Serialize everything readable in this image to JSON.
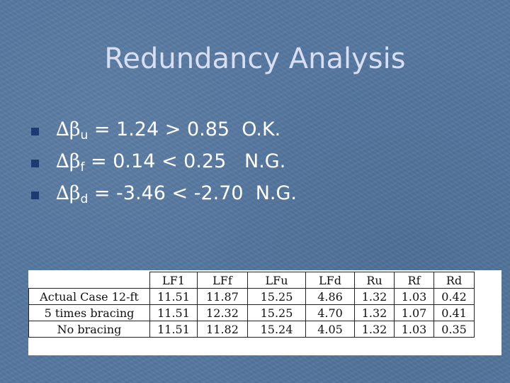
{
  "title": "Redundancy Analysis",
  "bullets": [
    {
      "symbol": "∆β",
      "sub": "u",
      "rest": " = 1.24 > 0.85  O.K."
    },
    {
      "symbol": "∆β",
      "sub": "f",
      "rest": " = 0.14 < 0.25   N.G."
    },
    {
      "symbol": "∆β",
      "sub": "d",
      "rest": " = -3.46 < -2.70  N.G."
    }
  ],
  "table": {
    "headers": [
      "LF1",
      "LFf",
      "LFu",
      "LFd",
      "Ru",
      "Rf",
      "Rd"
    ],
    "rows": [
      {
        "label": "Actual Case 12-ft",
        "cells": [
          "11.51",
          "11.87",
          "15.25",
          "4.86",
          "1.32",
          "1.03",
          "0.42"
        ]
      },
      {
        "label": "5 times bracing",
        "cells": [
          "11.51",
          "12.32",
          "15.25",
          "4.70",
          "1.32",
          "1.07",
          "0.41"
        ]
      },
      {
        "label": "No bracing",
        "cells": [
          "11.51",
          "11.82",
          "15.24",
          "4.05",
          "1.32",
          "1.03",
          "0.35"
        ]
      }
    ]
  },
  "colors": {
    "background": "#5577a0",
    "title": "#d8dff2",
    "bullet": "#1f3a70",
    "text": "#ffffff"
  }
}
